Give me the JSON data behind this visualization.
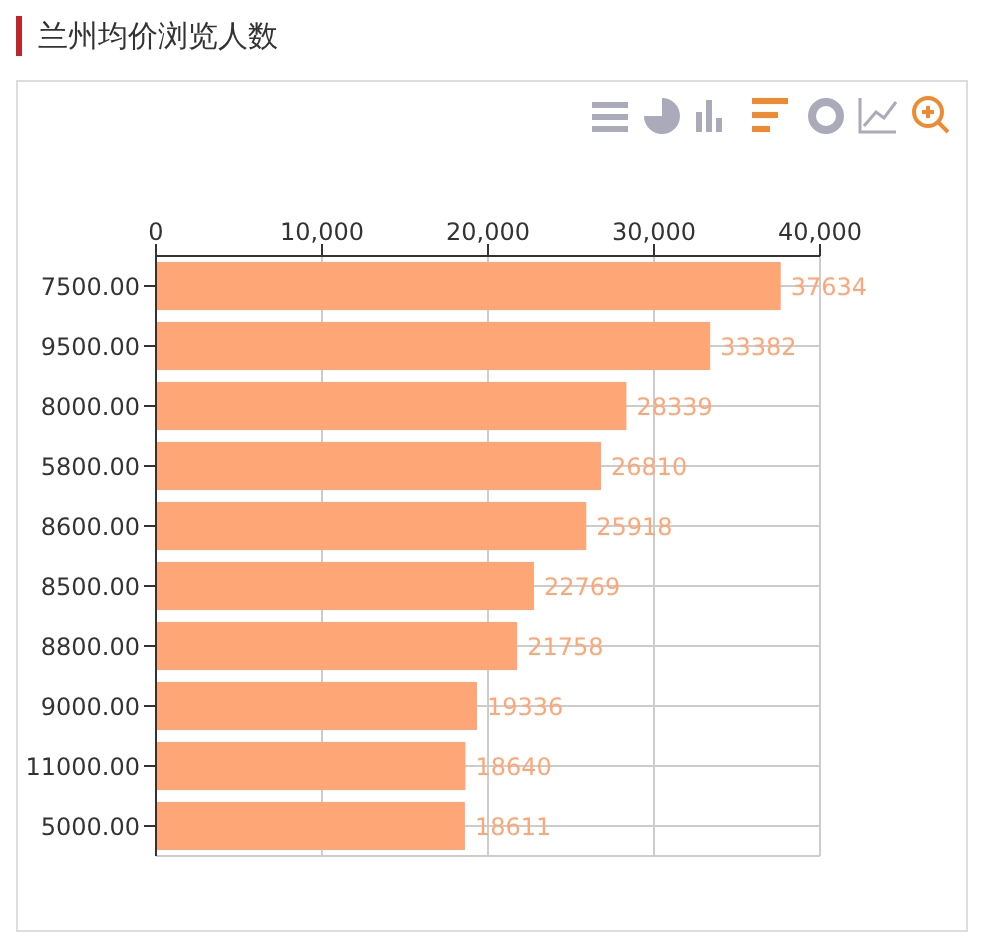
{
  "chart_data": {
    "type": "bar",
    "orientation": "horizontal",
    "title": "兰州均价浏览人数",
    "categories": [
      "7500.00",
      "9500.00",
      "8000.00",
      "5800.00",
      "8600.00",
      "8500.00",
      "8800.00",
      "9000.00",
      "11000.00",
      "5000.00"
    ],
    "values": [
      37634,
      33382,
      28339,
      26810,
      25918,
      22769,
      21758,
      19336,
      18640,
      18611
    ],
    "color": "#ffa677",
    "xlim": [
      0,
      40000
    ],
    "xticks": [
      0,
      {
        "value": 10000,
        "label": "10,000"
      },
      {
        "value": 20000,
        "label": "20,000"
      },
      {
        "value": 30000,
        "label": "30,000"
      },
      {
        "value": 40000,
        "label": "40,000"
      }
    ],
    "grid": true,
    "data_labels": true
  }
}
